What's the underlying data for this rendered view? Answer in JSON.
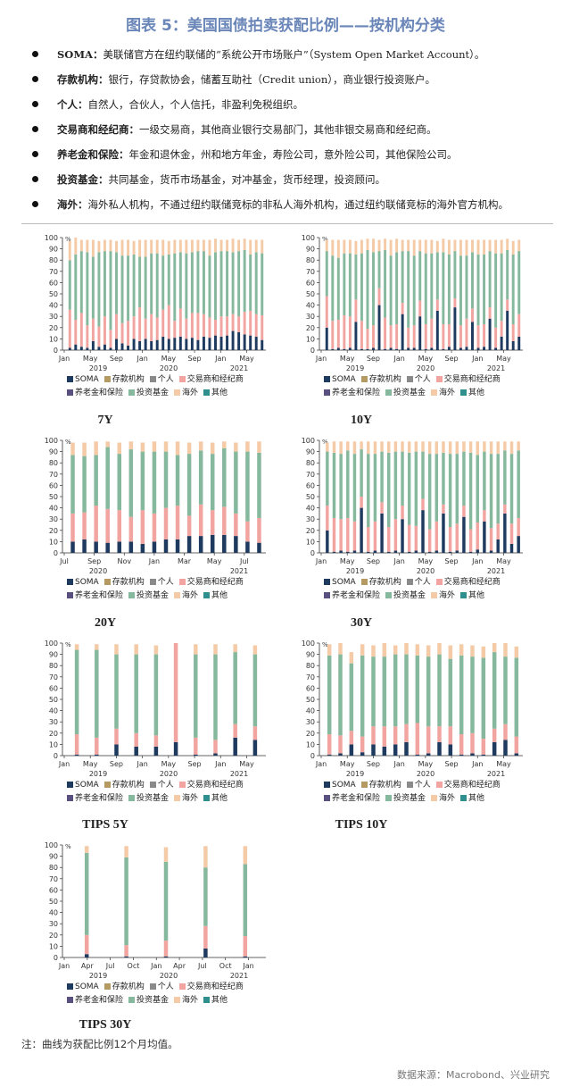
{
  "title": "图表 5：美国国债拍卖获配比例——按机构分类",
  "definitions": [
    {
      "term": "SOMA",
      "text": "美联储官方在纽约联储的“系统公开市场账户”（System Open Market Account）。"
    },
    {
      "term": "存款机构",
      "text": "银行，存贷款协会，储蓄互助社（Credit union），商业银行投资账户。"
    },
    {
      "term": "个人",
      "text": "自然人，合伙人，个人信托，非盈利免税组织。"
    },
    {
      "term": "交易商和经纪商",
      "text": "一级交易商，其他商业银行交易部门，其他非银交易商和经纪商。"
    },
    {
      "term": "养老金和保险",
      "text": "年金和退休金，州和地方年金，寿险公司，意外险公司，其他保险公司。"
    },
    {
      "term": "投资基金",
      "text": "共同基金，货币市场基金，对冲基金，货币经理，投资顾问。"
    },
    {
      "term": "海外",
      "text": "海外私人机构，不通过纽约联储竞标的非私人海外机构，通过纽约联储竞标的海外官方机构。"
    }
  ],
  "legend": {
    "row1": [
      "SOMA",
      "存款机构",
      "个人",
      "交易商和经纪商"
    ],
    "row2": [
      "养老金和保险",
      "投资基金",
      "海外",
      "其他"
    ],
    "colors": [
      "#1f3a5f",
      "#b59a62",
      "#8a8a8a",
      "#f2a5a0",
      "#5a5080",
      "#86b89e",
      "#f5cba7",
      "#2f8f8f"
    ]
  },
  "note": "注：曲线为获配比例12个月均值。",
  "source": "数据来源：Macrobond、兴业研究",
  "chart_data": [
    {
      "type": "bar",
      "stacked": true,
      "title": "7Y",
      "ylabel": "%",
      "ylim": [
        0,
        100
      ],
      "yticks": [
        0,
        10,
        20,
        30,
        40,
        50,
        60,
        70,
        80,
        90,
        100
      ],
      "xticks": [
        "Jan",
        "May",
        "Sep",
        "Jan",
        "May",
        "Sep",
        "Jan",
        "May"
      ],
      "year_labels": [
        "2019",
        "2020",
        "2021"
      ],
      "series_order": [
        "SOMA",
        "交易商和经纪商",
        "投资基金",
        "海外"
      ],
      "data": [
        [
          2,
          34,
          44,
          17
        ],
        [
          5,
          22,
          58,
          15
        ],
        [
          3,
          30,
          55,
          10
        ],
        [
          2,
          20,
          65,
          11
        ],
        [
          8,
          20,
          55,
          15
        ],
        [
          3,
          18,
          66,
          10
        ],
        [
          5,
          25,
          58,
          10
        ],
        [
          2,
          16,
          70,
          10
        ],
        [
          10,
          22,
          55,
          10
        ],
        [
          6,
          18,
          60,
          14
        ],
        [
          4,
          22,
          58,
          14
        ],
        [
          10,
          20,
          55,
          12
        ],
        [
          8,
          30,
          45,
          15
        ],
        [
          10,
          18,
          55,
          15
        ],
        [
          8,
          24,
          54,
          12
        ],
        [
          9,
          20,
          57,
          12
        ],
        [
          12,
          24,
          48,
          14
        ],
        [
          10,
          30,
          45,
          12
        ],
        [
          11,
          15,
          60,
          12
        ],
        [
          12,
          25,
          50,
          11
        ],
        [
          10,
          18,
          58,
          12
        ],
        [
          11,
          22,
          54,
          11
        ],
        [
          9,
          24,
          55,
          10
        ],
        [
          12,
          20,
          56,
          10
        ],
        [
          11,
          18,
          55,
          14
        ],
        [
          13,
          14,
          60,
          12
        ],
        [
          12,
          18,
          58,
          10
        ],
        [
          13,
          17,
          58,
          10
        ],
        [
          17,
          15,
          55,
          12
        ],
        [
          16,
          14,
          58,
          10
        ],
        [
          14,
          20,
          55,
          10
        ],
        [
          13,
          22,
          50,
          13
        ],
        [
          12,
          20,
          55,
          11
        ],
        [
          9,
          22,
          55,
          12
        ]
      ]
    },
    {
      "type": "bar",
      "stacked": true,
      "title": "10Y",
      "ylabel": "%",
      "ylim": [
        0,
        100
      ],
      "yticks": [
        0,
        10,
        20,
        30,
        40,
        50,
        60,
        70,
        80,
        90,
        100
      ],
      "xticks": [
        "Jan",
        "May",
        "Sep",
        "Jan",
        "May",
        "Sep",
        "Jan",
        "May"
      ],
      "year_labels": [
        "2019",
        "2020",
        "2021"
      ],
      "series_order": [
        "SOMA",
        "交易商和经纪商",
        "投资基金",
        "海外"
      ],
      "data": [
        [
          20,
          28,
          40,
          10
        ],
        [
          1,
          25,
          58,
          14
        ],
        [
          2,
          25,
          55,
          16
        ],
        [
          1,
          30,
          55,
          12
        ],
        [
          2,
          28,
          56,
          12
        ],
        [
          25,
          20,
          40,
          12
        ],
        [
          1,
          25,
          60,
          12
        ],
        [
          1,
          18,
          70,
          10
        ],
        [
          2,
          20,
          65,
          12
        ],
        [
          40,
          15,
          33,
          10
        ],
        [
          1,
          28,
          60,
          10
        ],
        [
          2,
          20,
          62,
          14
        ],
        [
          1,
          22,
          64,
          12
        ],
        [
          32,
          10,
          46,
          10
        ],
        [
          2,
          18,
          68,
          10
        ],
        [
          2,
          20,
          62,
          14
        ],
        [
          30,
          14,
          44,
          10
        ],
        [
          1,
          22,
          63,
          12
        ],
        [
          2,
          26,
          58,
          12
        ],
        [
          35,
          10,
          42,
          10
        ],
        [
          1,
          22,
          64,
          12
        ],
        [
          3,
          20,
          62,
          13
        ],
        [
          38,
          8,
          42,
          10
        ],
        [
          2,
          20,
          62,
          14
        ],
        [
          3,
          25,
          56,
          14
        ],
        [
          25,
          12,
          50,
          11
        ],
        [
          2,
          20,
          63,
          13
        ],
        [
          3,
          20,
          62,
          13
        ],
        [
          28,
          10,
          50,
          10
        ],
        [
          2,
          18,
          66,
          12
        ],
        [
          12,
          14,
          60,
          12
        ],
        [
          35,
          10,
          44,
          10
        ],
        [
          8,
          15,
          62,
          12
        ],
        [
          12,
          20,
          56,
          10
        ]
      ]
    },
    {
      "type": "bar",
      "stacked": true,
      "title": "20Y",
      "ylabel": "%",
      "ylim": [
        0,
        100
      ],
      "yticks": [
        0,
        10,
        20,
        30,
        40,
        50,
        60,
        70,
        80,
        90,
        100
      ],
      "xticks": [
        "Jul",
        "Sep",
        "Nov",
        "Jan",
        "Mar",
        "May",
        "Jul"
      ],
      "year_labels": [
        "2020",
        "2021"
      ],
      "series_order": [
        "SOMA",
        "交易商和经纪商",
        "投资基金",
        "海外"
      ],
      "data": [
        [
          10,
          25,
          52,
          11
        ],
        [
          12,
          24,
          50,
          12
        ],
        [
          10,
          32,
          45,
          12
        ],
        [
          9,
          30,
          55,
          5
        ],
        [
          10,
          28,
          50,
          10
        ],
        [
          10,
          22,
          60,
          7
        ],
        [
          8,
          30,
          52,
          8
        ],
        [
          10,
          25,
          55,
          9
        ],
        [
          12,
          28,
          50,
          9
        ],
        [
          12,
          30,
          45,
          12
        ],
        [
          15,
          18,
          55,
          10
        ],
        [
          15,
          28,
          48,
          8
        ],
        [
          16,
          22,
          50,
          10
        ],
        [
          16,
          25,
          52,
          6
        ],
        [
          15,
          20,
          55,
          8
        ],
        [
          10,
          18,
          62,
          9
        ],
        [
          9,
          22,
          58,
          10
        ]
      ]
    },
    {
      "type": "bar",
      "stacked": true,
      "title": "30Y",
      "ylabel": "%",
      "ylim": [
        0,
        100
      ],
      "yticks": [
        0,
        10,
        20,
        30,
        40,
        50,
        60,
        70,
        80,
        90,
        100
      ],
      "xticks": [
        "Jan",
        "May",
        "Sep",
        "Jan",
        "May",
        "Sep",
        "Jan",
        "May"
      ],
      "year_labels": [
        "2019",
        "2020",
        "2021"
      ],
      "series_order": [
        "SOMA",
        "交易商和经纪商",
        "投资基金",
        "海外"
      ],
      "data": [
        [
          20,
          22,
          48,
          8
        ],
        [
          1,
          30,
          58,
          10
        ],
        [
          2,
          28,
          58,
          11
        ],
        [
          1,
          30,
          60,
          8
        ],
        [
          2,
          26,
          60,
          11
        ],
        [
          40,
          10,
          42,
          7
        ],
        [
          1,
          22,
          65,
          11
        ],
        [
          2,
          26,
          60,
          11
        ],
        [
          35,
          10,
          45,
          9
        ],
        [
          1,
          22,
          66,
          10
        ],
        [
          2,
          28,
          60,
          9
        ],
        [
          30,
          12,
          48,
          9
        ],
        [
          1,
          24,
          64,
          10
        ],
        [
          2,
          22,
          66,
          9
        ],
        [
          38,
          10,
          42,
          9
        ],
        [
          1,
          20,
          67,
          11
        ],
        [
          2,
          26,
          60,
          11
        ],
        [
          35,
          8,
          46,
          10
        ],
        [
          1,
          22,
          65,
          11
        ],
        [
          2,
          24,
          62,
          11
        ],
        [
          32,
          10,
          48,
          9
        ],
        [
          1,
          20,
          68,
          10
        ],
        [
          3,
          24,
          60,
          12
        ],
        [
          28,
          10,
          52,
          9
        ],
        [
          2,
          20,
          66,
          11
        ],
        [
          12,
          14,
          62,
          11
        ],
        [
          35,
          8,
          48,
          8
        ],
        [
          8,
          18,
          62,
          11
        ],
        [
          15,
          16,
          60,
          8
        ]
      ]
    },
    {
      "type": "bar",
      "stacked": true,
      "title": "TIPS 5Y",
      "ylabel": "%",
      "ylim": [
        0,
        100
      ],
      "yticks": [
        0,
        10,
        20,
        30,
        40,
        50,
        60,
        70,
        80,
        90,
        100
      ],
      "xticks": [
        "Jan",
        "May",
        "Sep",
        "Jan",
        "May",
        "Sep",
        "Jan",
        "May"
      ],
      "year_labels": [
        "2019",
        "2020",
        "2021"
      ],
      "series_order": [
        "SOMA",
        "交易商和经纪商",
        "投资基金",
        "海外"
      ],
      "data": [
        [
          1,
          18,
          75,
          5
        ],
        [
          1,
          15,
          78,
          5
        ],
        [
          10,
          14,
          66,
          9
        ],
        [
          8,
          12,
          70,
          9
        ],
        [
          8,
          10,
          72,
          8
        ],
        [
          12,
          88,
          0,
          0
        ],
        [
          1,
          15,
          74,
          9
        ],
        [
          2,
          12,
          76,
          9
        ],
        [
          16,
          12,
          64,
          7
        ],
        [
          14,
          12,
          64,
          8
        ]
      ]
    },
    {
      "type": "bar",
      "stacked": true,
      "title": "TIPS 10Y",
      "ylabel": "%",
      "ylim": [
        0,
        100
      ],
      "yticks": [
        0,
        10,
        20,
        30,
        40,
        50,
        60,
        70,
        80,
        90,
        100
      ],
      "xticks": [
        "Jan",
        "May",
        "Sep",
        "Jan",
        "May",
        "Sep",
        "Jan",
        "May"
      ],
      "year_labels": [
        "2019",
        "2020",
        "2021"
      ],
      "series_order": [
        "SOMA",
        "交易商和经纪商",
        "投资基金",
        "海外"
      ],
      "data": [
        [
          1,
          18,
          70,
          10
        ],
        [
          2,
          16,
          72,
          10
        ],
        [
          10,
          12,
          60,
          10
        ],
        [
          3,
          14,
          72,
          10
        ],
        [
          10,
          16,
          62,
          10
        ],
        [
          8,
          18,
          62,
          12
        ],
        [
          10,
          16,
          64,
          8
        ],
        [
          12,
          16,
          62,
          10
        ],
        [
          1,
          28,
          60,
          10
        ],
        [
          2,
          24,
          62,
          10
        ],
        [
          12,
          14,
          64,
          10
        ],
        [
          10,
          16,
          60,
          12
        ],
        [
          1,
          18,
          70,
          10
        ],
        [
          2,
          18,
          68,
          10
        ],
        [
          1,
          14,
          72,
          10
        ],
        [
          12,
          12,
          68,
          8
        ],
        [
          14,
          14,
          60,
          12
        ],
        [
          2,
          15,
          70,
          10
        ]
      ]
    },
    {
      "type": "bar",
      "stacked": true,
      "title": "TIPS 30Y",
      "ylabel": "%",
      "ylim": [
        0,
        100
      ],
      "yticks": [
        0,
        10,
        20,
        30,
        40,
        50,
        60,
        70,
        80,
        90,
        100
      ],
      "xticks": [
        "Jan",
        "Apr",
        "Jul",
        "Oct",
        "Jan",
        "Apr",
        "Jul",
        "Oct",
        "Jan"
      ],
      "year_labels": [
        "2019",
        "2020",
        "2021"
      ],
      "series_order": [
        "SOMA",
        "交易商和经纪商",
        "投资基金",
        "海外"
      ],
      "data": [
        [
          3,
          17,
          73,
          6
        ],
        [
          1,
          10,
          78,
          10
        ],
        [
          1,
          14,
          70,
          13
        ],
        [
          8,
          20,
          52,
          19
        ],
        [
          1,
          18,
          64,
          16
        ]
      ]
    }
  ]
}
